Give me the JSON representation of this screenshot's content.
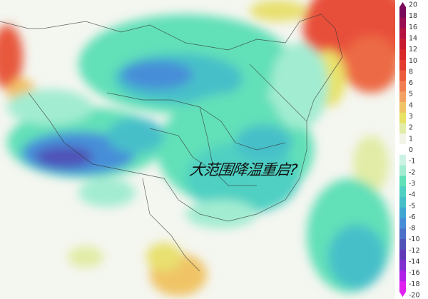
{
  "headline": "大范围降温重启?",
  "colorbar": {
    "ticks": [
      "20",
      "18",
      "16",
      "14",
      "12",
      "10",
      "8",
      "6",
      "5",
      "4",
      "3",
      "2",
      "1",
      "0",
      "-1",
      "-2",
      "-3",
      "-4",
      "-5",
      "-6",
      "-8",
      "-10",
      "-12",
      "-14",
      "-16",
      "-18",
      "-20"
    ],
    "colors": [
      "#7a0a5a",
      "#980e50",
      "#b41240",
      "#c81a30",
      "#d8282a",
      "#e43c30",
      "#ec5c3c",
      "#f07e52",
      "#f2a262",
      "#f0c466",
      "#e8e264",
      "#e2eca6",
      "#f2f4e8",
      "#ffffff",
      "#ccf2e4",
      "#a2ecd2",
      "#62e0b8",
      "#4fd0c2",
      "#46bfc9",
      "#40a6d2",
      "#468ed8",
      "#4a70c8",
      "#5052b8",
      "#6238b8",
      "#8230d0",
      "#b020e8",
      "#e020f0"
    ]
  }
}
